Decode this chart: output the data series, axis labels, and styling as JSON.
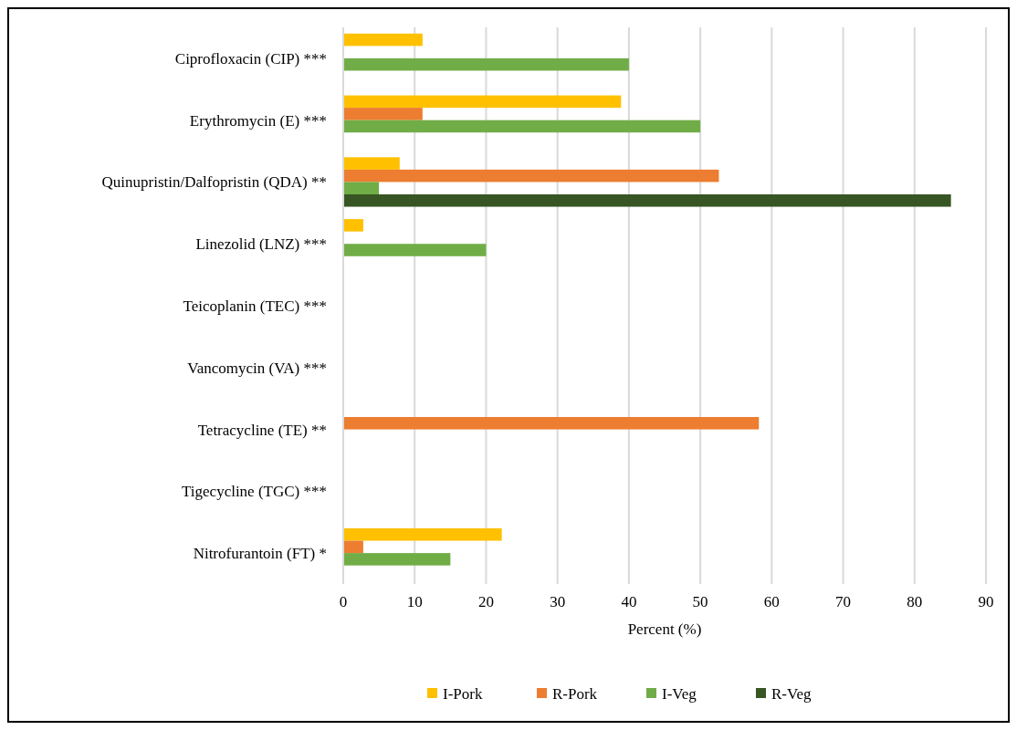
{
  "chart_data": {
    "type": "bar",
    "orientation": "horizontal",
    "xlabel": "Percent (%)",
    "categories": [
      "Ciprofloxacin (CIP) ***",
      "Erythromycin (E) ***",
      "Quinupristin/Dalfopristin (QDA) **",
      "Linezolid (LNZ) ***",
      "Teicoplanin (TEC) ***",
      "Vancomycin (VA) ***",
      "Tetracycline (TE) **",
      "Tigecycline (TGC) ***",
      "Nitrofurantoin (FT) *"
    ],
    "series": [
      {
        "name": "I-Pork",
        "color": "#ffc000",
        "values": [
          11.1,
          38.9,
          7.9,
          2.8,
          0,
          0,
          0,
          0,
          22.2
        ]
      },
      {
        "name": "R-Pork",
        "color": "#ed7d31",
        "values": [
          0,
          11.1,
          52.6,
          0,
          0,
          0,
          58.2,
          0,
          2.8
        ]
      },
      {
        "name": "I-Veg",
        "color": "#70ad47",
        "values": [
          40,
          50,
          5,
          20,
          0,
          0,
          0,
          0,
          15
        ]
      },
      {
        "name": "R-Veg",
        "color": "#375623",
        "values": [
          0,
          0,
          85.1,
          0,
          0,
          0,
          0,
          0,
          0
        ]
      }
    ],
    "xlim": [
      0,
      90
    ],
    "xticks": [
      0,
      10,
      20,
      30,
      40,
      50,
      60,
      70,
      80,
      90
    ],
    "grid": "x",
    "legend": "bottom"
  }
}
